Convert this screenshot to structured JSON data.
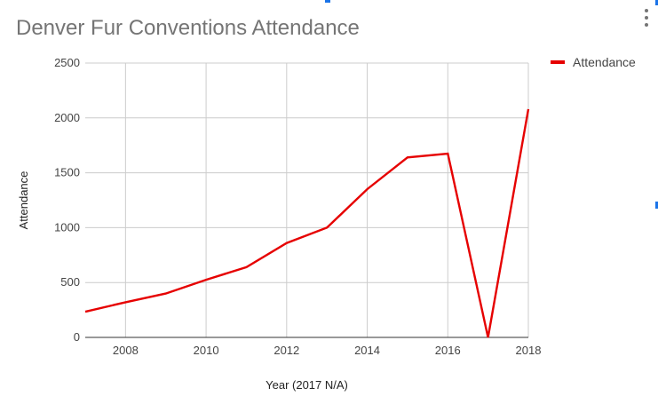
{
  "chart_data": {
    "type": "line",
    "title": "Denver Fur Conventions Attendance",
    "xlabel": "Year (2017 N/A)",
    "ylabel": "Attendance",
    "x": [
      2007,
      2008,
      2009,
      2010,
      2011,
      2012,
      2013,
      2014,
      2015,
      2016,
      2017,
      2018
    ],
    "xlim": [
      2007,
      2018
    ],
    "ylim": [
      0,
      2500
    ],
    "xticks": [
      2008,
      2010,
      2012,
      2014,
      2016,
      2018
    ],
    "yticks": [
      0,
      500,
      1000,
      1500,
      2000,
      2500
    ],
    "grid": true,
    "legend_position": "top-right",
    "series": [
      {
        "name": "Attendance",
        "color": "#e60000",
        "values": [
          234,
          320,
          400,
          525,
          640,
          860,
          1000,
          1350,
          1640,
          1675,
          0,
          2080
        ]
      }
    ]
  },
  "colors": {
    "gridline": "#cccccc",
    "axis": "#333333",
    "line": "#e60000",
    "title": "#757575"
  },
  "icons": {
    "menu": "vertical-ellipsis-icon"
  }
}
